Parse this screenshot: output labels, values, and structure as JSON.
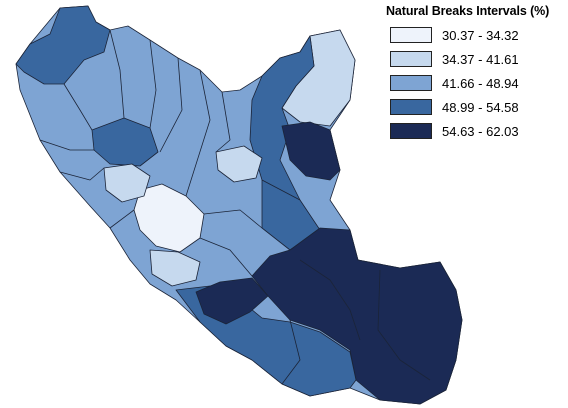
{
  "legend": {
    "title": "Natural Breaks Intervals (%)",
    "classes": [
      {
        "label": "30.37 - 34.32",
        "color": "#eef3fb"
      },
      {
        "label": "34.37 - 41.61",
        "color": "#c6d9ee"
      },
      {
        "label": "41.66 - 48.94",
        "color": "#7ea4d3"
      },
      {
        "label": "48.99 - 54.58",
        "color": "#39679f"
      },
      {
        "label": "54.63 - 62.03",
        "color": "#1b2a55"
      }
    ]
  }
}
